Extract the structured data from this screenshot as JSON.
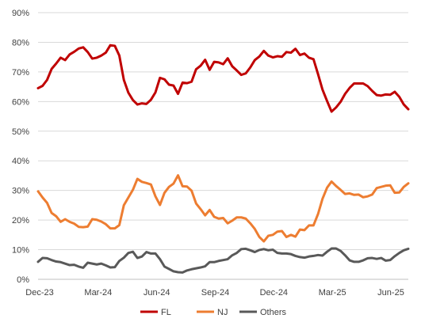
{
  "chart_data": {
    "type": "line",
    "title": "",
    "xlabel": "",
    "ylabel": "",
    "ylim": [
      0,
      90
    ],
    "y_ticks": [
      0,
      10,
      20,
      30,
      40,
      50,
      60,
      70,
      80,
      90
    ],
    "y_tick_labels": [
      "0%",
      "10%",
      "20%",
      "30%",
      "40%",
      "50%",
      "60%",
      "70%",
      "80%",
      "90%"
    ],
    "x_tick_labels": [
      "Dec-23",
      "Mar-24",
      "Jun-24",
      "Sep-24",
      "Dec-24",
      "Mar-25",
      "Jun-25"
    ],
    "grid": "horizontal",
    "legend_position": "bottom",
    "series": [
      {
        "name": "FL",
        "color": "#c00000",
        "values": [
          64.5,
          65.3,
          67.3,
          71.0,
          72.8,
          74.8,
          74.0,
          75.9,
          76.8,
          77.9,
          78.3,
          76.7,
          74.5,
          74.8,
          75.5,
          76.5,
          79.0,
          78.8,
          75.5,
          67.3,
          63.0,
          60.5,
          59.0,
          59.4,
          59.2,
          60.6,
          63.1,
          68.0,
          67.5,
          65.7,
          65.4,
          62.6,
          66.4,
          66.2,
          66.7,
          70.9,
          72.1,
          74.1,
          70.7,
          73.4,
          73.2,
          72.6,
          74.6,
          71.9,
          70.5,
          69.0,
          69.5,
          71.5,
          74.0,
          75.2,
          77.1,
          75.5,
          74.9,
          75.3,
          75.1,
          76.7,
          76.5,
          77.8,
          75.7,
          76.2,
          74.8,
          74.3,
          69.3,
          64.0,
          60.2,
          56.6,
          58.0,
          59.9,
          62.6,
          64.6,
          66.1,
          66.1,
          66.1,
          65.2,
          63.6,
          62.2,
          62.0,
          62.4,
          62.3,
          63.3,
          61.6,
          59.0,
          57.4
        ]
      },
      {
        "name": "NJ",
        "color": "#ed7d31",
        "values": [
          29.7,
          27.6,
          25.8,
          22.4,
          21.3,
          19.4,
          20.3,
          19.4,
          18.8,
          17.7,
          17.6,
          17.8,
          20.3,
          20.1,
          19.5,
          18.6,
          17.2,
          17.2,
          18.3,
          25.0,
          27.6,
          30.2,
          33.9,
          32.9,
          32.5,
          32.0,
          28.0,
          25.1,
          29.2,
          31.2,
          32.3,
          35.1,
          31.4,
          31.3,
          29.9,
          25.6,
          23.7,
          21.6,
          23.4,
          21.1,
          20.5,
          20.7,
          18.9,
          19.8,
          20.9,
          20.9,
          20.5,
          18.9,
          17.0,
          14.3,
          12.8,
          14.7,
          15.0,
          16.1,
          16.3,
          14.3,
          15.0,
          14.4,
          16.8,
          16.6,
          18.2,
          18.2,
          22.0,
          27.2,
          30.9,
          33.0,
          31.5,
          30.2,
          28.8,
          29.0,
          28.5,
          28.6,
          27.7,
          28.0,
          28.6,
          30.8,
          31.2,
          31.6,
          31.7,
          29.2,
          29.3,
          31.2,
          32.4
        ]
      },
      {
        "name": "Others",
        "color": "#595959",
        "values": [
          5.9,
          7.2,
          7.1,
          6.5,
          6.0,
          5.8,
          5.3,
          4.8,
          4.9,
          4.3,
          3.9,
          5.6,
          5.3,
          5.0,
          5.3,
          4.7,
          4.0,
          4.1,
          6.2,
          7.3,
          8.9,
          9.3,
          7.2,
          7.7,
          9.2,
          8.7,
          8.7,
          6.8,
          4.3,
          3.5,
          2.7,
          2.4,
          2.3,
          3.0,
          3.4,
          3.7,
          4.0,
          4.4,
          5.8,
          5.8,
          6.2,
          6.5,
          6.8,
          8.1,
          8.9,
          10.2,
          10.3,
          9.8,
          9.2,
          9.9,
          10.2,
          9.8,
          10.0,
          8.9,
          8.7,
          8.7,
          8.5,
          7.9,
          7.5,
          7.3,
          7.7,
          7.9,
          8.2,
          8.0,
          9.3,
          10.4,
          10.4,
          9.6,
          8.1,
          6.4,
          5.9,
          5.9,
          6.4,
          7.1,
          7.2,
          6.9,
          7.2,
          6.3,
          6.5,
          7.8,
          8.9,
          9.8,
          10.3
        ]
      }
    ]
  }
}
